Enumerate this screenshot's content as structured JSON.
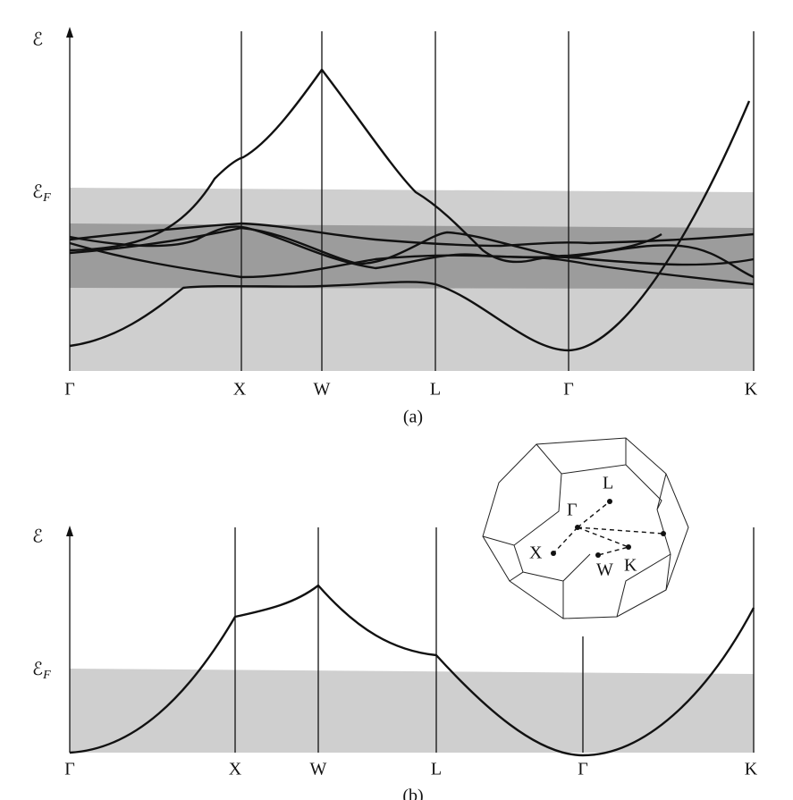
{
  "panel_a": {
    "axis_label": "ℰ",
    "fermi_label": {
      "symbol": "ℰ",
      "subscript": "F"
    },
    "points": [
      "Γ",
      "X",
      "W",
      "L",
      "Γ",
      "K"
    ],
    "caption": "(a)"
  },
  "panel_b": {
    "axis_label": "ℰ",
    "fermi_label": {
      "symbol": "ℰ",
      "subscript": "F"
    },
    "points": [
      "Γ",
      "X",
      "W",
      "L",
      "Γ",
      "K"
    ],
    "caption": "(b)"
  },
  "brillouin_zone": {
    "labels": [
      "L",
      "Γ",
      "X",
      "W",
      "K"
    ]
  }
}
